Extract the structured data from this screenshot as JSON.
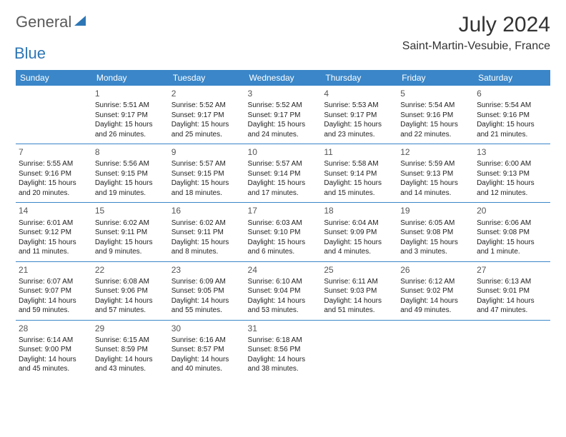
{
  "brand": {
    "general": "General",
    "blue": "Blue",
    "icon_color": "#2d76b5"
  },
  "title": "July 2024",
  "location": "Saint-Martin-Vesubie, France",
  "header_bg": "#3a86c8",
  "header_text": "#ffffff",
  "border_color": "#3a86c8",
  "weekdays": [
    "Sunday",
    "Monday",
    "Tuesday",
    "Wednesday",
    "Thursday",
    "Friday",
    "Saturday"
  ],
  "weeks": [
    [
      null,
      {
        "d": "1",
        "sr": "Sunrise: 5:51 AM",
        "ss": "Sunset: 9:17 PM",
        "dl1": "Daylight: 15 hours",
        "dl2": "and 26 minutes."
      },
      {
        "d": "2",
        "sr": "Sunrise: 5:52 AM",
        "ss": "Sunset: 9:17 PM",
        "dl1": "Daylight: 15 hours",
        "dl2": "and 25 minutes."
      },
      {
        "d": "3",
        "sr": "Sunrise: 5:52 AM",
        "ss": "Sunset: 9:17 PM",
        "dl1": "Daylight: 15 hours",
        "dl2": "and 24 minutes."
      },
      {
        "d": "4",
        "sr": "Sunrise: 5:53 AM",
        "ss": "Sunset: 9:17 PM",
        "dl1": "Daylight: 15 hours",
        "dl2": "and 23 minutes."
      },
      {
        "d": "5",
        "sr": "Sunrise: 5:54 AM",
        "ss": "Sunset: 9:16 PM",
        "dl1": "Daylight: 15 hours",
        "dl2": "and 22 minutes."
      },
      {
        "d": "6",
        "sr": "Sunrise: 5:54 AM",
        "ss": "Sunset: 9:16 PM",
        "dl1": "Daylight: 15 hours",
        "dl2": "and 21 minutes."
      }
    ],
    [
      {
        "d": "7",
        "sr": "Sunrise: 5:55 AM",
        "ss": "Sunset: 9:16 PM",
        "dl1": "Daylight: 15 hours",
        "dl2": "and 20 minutes."
      },
      {
        "d": "8",
        "sr": "Sunrise: 5:56 AM",
        "ss": "Sunset: 9:15 PM",
        "dl1": "Daylight: 15 hours",
        "dl2": "and 19 minutes."
      },
      {
        "d": "9",
        "sr": "Sunrise: 5:57 AM",
        "ss": "Sunset: 9:15 PM",
        "dl1": "Daylight: 15 hours",
        "dl2": "and 18 minutes."
      },
      {
        "d": "10",
        "sr": "Sunrise: 5:57 AM",
        "ss": "Sunset: 9:14 PM",
        "dl1": "Daylight: 15 hours",
        "dl2": "and 17 minutes."
      },
      {
        "d": "11",
        "sr": "Sunrise: 5:58 AM",
        "ss": "Sunset: 9:14 PM",
        "dl1": "Daylight: 15 hours",
        "dl2": "and 15 minutes."
      },
      {
        "d": "12",
        "sr": "Sunrise: 5:59 AM",
        "ss": "Sunset: 9:13 PM",
        "dl1": "Daylight: 15 hours",
        "dl2": "and 14 minutes."
      },
      {
        "d": "13",
        "sr": "Sunrise: 6:00 AM",
        "ss": "Sunset: 9:13 PM",
        "dl1": "Daylight: 15 hours",
        "dl2": "and 12 minutes."
      }
    ],
    [
      {
        "d": "14",
        "sr": "Sunrise: 6:01 AM",
        "ss": "Sunset: 9:12 PM",
        "dl1": "Daylight: 15 hours",
        "dl2": "and 11 minutes."
      },
      {
        "d": "15",
        "sr": "Sunrise: 6:02 AM",
        "ss": "Sunset: 9:11 PM",
        "dl1": "Daylight: 15 hours",
        "dl2": "and 9 minutes."
      },
      {
        "d": "16",
        "sr": "Sunrise: 6:02 AM",
        "ss": "Sunset: 9:11 PM",
        "dl1": "Daylight: 15 hours",
        "dl2": "and 8 minutes."
      },
      {
        "d": "17",
        "sr": "Sunrise: 6:03 AM",
        "ss": "Sunset: 9:10 PM",
        "dl1": "Daylight: 15 hours",
        "dl2": "and 6 minutes."
      },
      {
        "d": "18",
        "sr": "Sunrise: 6:04 AM",
        "ss": "Sunset: 9:09 PM",
        "dl1": "Daylight: 15 hours",
        "dl2": "and 4 minutes."
      },
      {
        "d": "19",
        "sr": "Sunrise: 6:05 AM",
        "ss": "Sunset: 9:08 PM",
        "dl1": "Daylight: 15 hours",
        "dl2": "and 3 minutes."
      },
      {
        "d": "20",
        "sr": "Sunrise: 6:06 AM",
        "ss": "Sunset: 9:08 PM",
        "dl1": "Daylight: 15 hours",
        "dl2": "and 1 minute."
      }
    ],
    [
      {
        "d": "21",
        "sr": "Sunrise: 6:07 AM",
        "ss": "Sunset: 9:07 PM",
        "dl1": "Daylight: 14 hours",
        "dl2": "and 59 minutes."
      },
      {
        "d": "22",
        "sr": "Sunrise: 6:08 AM",
        "ss": "Sunset: 9:06 PM",
        "dl1": "Daylight: 14 hours",
        "dl2": "and 57 minutes."
      },
      {
        "d": "23",
        "sr": "Sunrise: 6:09 AM",
        "ss": "Sunset: 9:05 PM",
        "dl1": "Daylight: 14 hours",
        "dl2": "and 55 minutes."
      },
      {
        "d": "24",
        "sr": "Sunrise: 6:10 AM",
        "ss": "Sunset: 9:04 PM",
        "dl1": "Daylight: 14 hours",
        "dl2": "and 53 minutes."
      },
      {
        "d": "25",
        "sr": "Sunrise: 6:11 AM",
        "ss": "Sunset: 9:03 PM",
        "dl1": "Daylight: 14 hours",
        "dl2": "and 51 minutes."
      },
      {
        "d": "26",
        "sr": "Sunrise: 6:12 AM",
        "ss": "Sunset: 9:02 PM",
        "dl1": "Daylight: 14 hours",
        "dl2": "and 49 minutes."
      },
      {
        "d": "27",
        "sr": "Sunrise: 6:13 AM",
        "ss": "Sunset: 9:01 PM",
        "dl1": "Daylight: 14 hours",
        "dl2": "and 47 minutes."
      }
    ],
    [
      {
        "d": "28",
        "sr": "Sunrise: 6:14 AM",
        "ss": "Sunset: 9:00 PM",
        "dl1": "Daylight: 14 hours",
        "dl2": "and 45 minutes."
      },
      {
        "d": "29",
        "sr": "Sunrise: 6:15 AM",
        "ss": "Sunset: 8:59 PM",
        "dl1": "Daylight: 14 hours",
        "dl2": "and 43 minutes."
      },
      {
        "d": "30",
        "sr": "Sunrise: 6:16 AM",
        "ss": "Sunset: 8:57 PM",
        "dl1": "Daylight: 14 hours",
        "dl2": "and 40 minutes."
      },
      {
        "d": "31",
        "sr": "Sunrise: 6:18 AM",
        "ss": "Sunset: 8:56 PM",
        "dl1": "Daylight: 14 hours",
        "dl2": "and 38 minutes."
      },
      null,
      null,
      null
    ]
  ]
}
